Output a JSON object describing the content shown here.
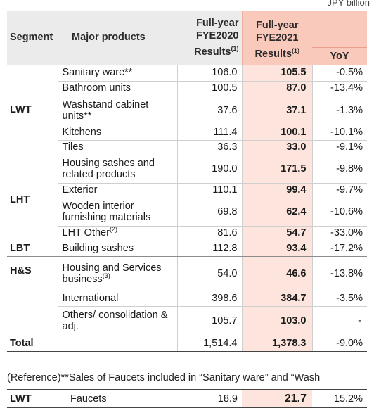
{
  "unit": "JPY billion",
  "header": {
    "segment": "Segment",
    "products": "Major products",
    "fy2020": [
      "Full-year",
      "FYE2020",
      "Results"
    ],
    "fy2020_note": "(1)",
    "fy2021": [
      "Full-year",
      "FYE2021",
      "Results"
    ],
    "fy2021_note": "(1)",
    "yoy": "YoY"
  },
  "rows": [
    {
      "segment": "LWT",
      "product": "Sanitary ware**",
      "fy2020": "106.0",
      "fy2021": "105.5",
      "yoy": "-0.5%"
    },
    {
      "segment": "",
      "product": "Bathroom units",
      "fy2020": "100.5",
      "fy2021": "87.0",
      "yoy": "-13.4%"
    },
    {
      "segment": "",
      "product": "Washstand cabinet units**",
      "fy2020": "37.6",
      "fy2021": "37.1",
      "yoy": "-1.3%"
    },
    {
      "segment": "",
      "product": "Kitchens",
      "fy2020": "111.4",
      "fy2021": "100.1",
      "yoy": "-10.1%"
    },
    {
      "segment": "",
      "product": "Tiles",
      "fy2020": "36.3",
      "fy2021": "33.0",
      "yoy": "-9.1%"
    },
    {
      "segment": "LHT",
      "product": "Housing sashes and related products",
      "fy2020": "190.0",
      "fy2021": "171.5",
      "yoy": "-9.8%"
    },
    {
      "segment": "",
      "product": "Exterior",
      "fy2020": "110.1",
      "fy2021": "99.4",
      "yoy": "-9.7%"
    },
    {
      "segment": "",
      "product": "Wooden interior furnishing materials",
      "fy2020": "69.8",
      "fy2021": "62.4",
      "yoy": "-10.6%"
    },
    {
      "segment": "",
      "product": "LHT Other",
      "product_note": "(2)",
      "fy2020": "81.6",
      "fy2021": "54.7",
      "yoy": "-33.0%"
    },
    {
      "segment": "LBT",
      "product": "Building sashes",
      "fy2020": "112.8",
      "fy2021": "93.4",
      "yoy": "-17.2%"
    },
    {
      "segment": "H&S",
      "product": "Housing and Services business",
      "product_note": "(3)",
      "fy2020": "54.0",
      "fy2021": "46.6",
      "yoy": "-13.8%"
    },
    {
      "segment": "",
      "product": "International",
      "fy2020": "398.6",
      "fy2021": "384.7",
      "yoy": "-3.5%"
    },
    {
      "segment": "",
      "product": "Others/ consolidation & adj.",
      "fy2020": "105.7",
      "fy2021": "103.0",
      "yoy": "-"
    }
  ],
  "total": {
    "label": "Total",
    "fy2020": "1,514.4",
    "fy2021": "1,378.3",
    "yoy": "-9.0%"
  },
  "reference": {
    "note": "(Reference)**Sales of Faucets included in “Sanitary ware” and “Wash",
    "segment": "LWT",
    "product": "Faucets",
    "fy2020": "18.9",
    "fy2021": "21.7",
    "yoy": "15.2%"
  }
}
